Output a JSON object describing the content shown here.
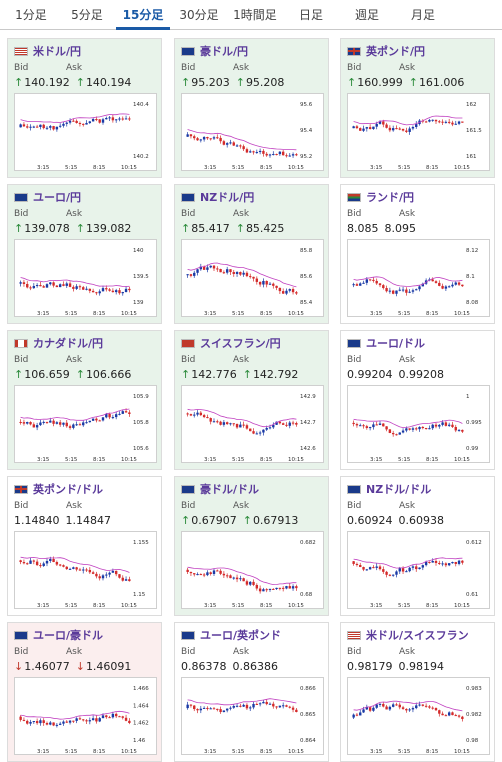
{
  "tabs": [
    "1分足",
    "5分足",
    "15分足",
    "30分足",
    "1時間足",
    "日足",
    "週足",
    "月足"
  ],
  "active_tab": 2,
  "labels": {
    "bid": "Bid",
    "ask": "Ask"
  },
  "cards": [
    {
      "pair": "米ドル/円",
      "bid": "140.192",
      "ask": "140.194",
      "dir": "up",
      "flag": "us",
      "y_ticks": [
        "140.4",
        "140.2"
      ],
      "x_ticks": [
        "3:15",
        "5:15",
        "8:15",
        "10:15"
      ]
    },
    {
      "pair": "豪ドル/円",
      "bid": "95.203",
      "ask": "95.208",
      "dir": "up",
      "flag": "au",
      "y_ticks": [
        "95.6",
        "95.4",
        "95.2"
      ],
      "x_ticks": [
        "3:15",
        "5:15",
        "8:15",
        "10:15"
      ]
    },
    {
      "pair": "英ポンド/円",
      "bid": "160.999",
      "ask": "161.006",
      "dir": "up",
      "flag": "gb",
      "y_ticks": [
        "162",
        "161.5",
        "161"
      ],
      "x_ticks": [
        "3:15",
        "5:15",
        "8:15",
        "10:15"
      ]
    },
    {
      "pair": "ユーロ/円",
      "bid": "139.078",
      "ask": "139.082",
      "dir": "up",
      "flag": "eu",
      "y_ticks": [
        "140",
        "139.5",
        "139"
      ],
      "x_ticks": [
        "3:15",
        "5:15",
        "8:15",
        "10:15"
      ]
    },
    {
      "pair": "NZドル/円",
      "bid": "85.417",
      "ask": "85.425",
      "dir": "up",
      "flag": "nz",
      "y_ticks": [
        "85.8",
        "85.6",
        "85.4"
      ],
      "x_ticks": [
        "3:15",
        "5:15",
        "8:15",
        "10:15"
      ]
    },
    {
      "pair": "ランド/円",
      "bid": "8.085",
      "ask": "8.095",
      "dir": "none",
      "flag": "za",
      "y_ticks": [
        "8.12",
        "8.1",
        "8.08"
      ],
      "x_ticks": [
        "3:15",
        "5:15",
        "8:15",
        "10:15"
      ]
    },
    {
      "pair": "カナダドル/円",
      "bid": "106.659",
      "ask": "106.666",
      "dir": "up",
      "flag": "ca",
      "y_ticks": [
        "105.9",
        "105.8",
        "105.6"
      ],
      "x_ticks": [
        "3:15",
        "5:15",
        "8:15",
        "10:15"
      ]
    },
    {
      "pair": "スイスフラン/円",
      "bid": "142.776",
      "ask": "142.792",
      "dir": "up",
      "flag": "ch",
      "y_ticks": [
        "142.9",
        "142.7",
        "142.6"
      ],
      "x_ticks": [
        "3:15",
        "5:15",
        "8:15",
        "10:15"
      ]
    },
    {
      "pair": "ユーロ/ドル",
      "bid": "0.99204",
      "ask": "0.99208",
      "dir": "none",
      "flag": "eu",
      "y_ticks": [
        "1",
        "0.995",
        "0.99"
      ],
      "x_ticks": [
        "3:15",
        "5:15",
        "8:15",
        "10:15"
      ]
    },
    {
      "pair": "英ポンド/ドル",
      "bid": "1.14840",
      "ask": "1.14847",
      "dir": "none",
      "flag": "gb",
      "y_ticks": [
        "1.155",
        "1.15"
      ],
      "x_ticks": [
        "3:15",
        "5:15",
        "8:15",
        "10:15"
      ]
    },
    {
      "pair": "豪ドル/ドル",
      "bid": "0.67907",
      "ask": "0.67913",
      "dir": "up",
      "flag": "au",
      "y_ticks": [
        "0.682",
        "0.68"
      ],
      "x_ticks": [
        "3:15",
        "5:15",
        "8:15",
        "10:15"
      ]
    },
    {
      "pair": "NZドル/ドル",
      "bid": "0.60924",
      "ask": "0.60938",
      "dir": "none",
      "flag": "nz",
      "y_ticks": [
        "0.612",
        "0.61"
      ],
      "x_ticks": [
        "3:15",
        "5:15",
        "8:15",
        "10:15"
      ]
    },
    {
      "pair": "ユーロ/豪ドル",
      "bid": "1.46077",
      "ask": "1.46091",
      "dir": "down",
      "flag": "eu",
      "y_ticks": [
        "1.466",
        "1.464",
        "1.462",
        "1.46"
      ],
      "x_ticks": [
        "3:15",
        "5:15",
        "8:15",
        "10:15"
      ]
    },
    {
      "pair": "ユーロ/英ポンド",
      "bid": "0.86378",
      "ask": "0.86386",
      "dir": "none",
      "flag": "eu",
      "y_ticks": [
        "0.866",
        "0.865",
        "0.864"
      ],
      "x_ticks": [
        "3:15",
        "5:15",
        "8:15",
        "10:15"
      ]
    },
    {
      "pair": "米ドル/スイスフラン",
      "bid": "0.98179",
      "ask": "0.98194",
      "dir": "none",
      "flag": "us",
      "y_ticks": [
        "0.983",
        "0.982",
        "0.98"
      ],
      "x_ticks": [
        "3:15",
        "5:15",
        "8:15",
        "10:15"
      ]
    }
  ],
  "colors": {
    "up": "#2a8a3a",
    "down": "#c0392b",
    "bull": "#1a3aa6",
    "bear": "#d42a2a",
    "ma": "#c040c0",
    "ma2": "#3aa6c0"
  }
}
